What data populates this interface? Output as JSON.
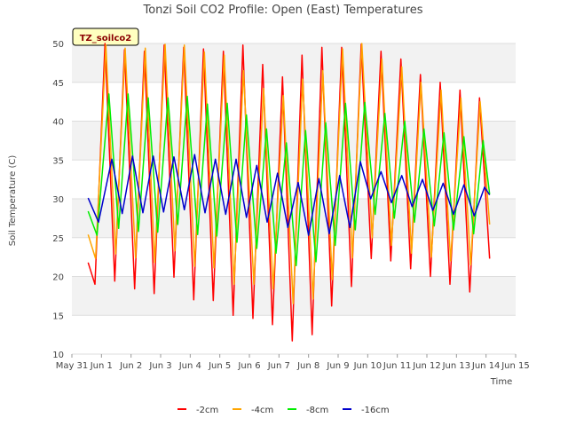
{
  "chart_data": {
    "type": "line",
    "title": "Tonzi Soil CO2 Profile: Open (East) Temperatures",
    "xlabel": "Time",
    "ylabel": "Soil Temperature (C)",
    "ylim": [
      10,
      50
    ],
    "yticks": [
      10,
      15,
      20,
      25,
      30,
      35,
      40,
      45,
      50
    ],
    "xlim": [
      0,
      15
    ],
    "xticks": [
      {
        "x": 0,
        "label": "May 31"
      },
      {
        "x": 1,
        "label": "Jun 1"
      },
      {
        "x": 2,
        "label": "Jun 2"
      },
      {
        "x": 3,
        "label": "Jun 3"
      },
      {
        "x": 4,
        "label": "Jun 4"
      },
      {
        "x": 5,
        "label": "Jun 5"
      },
      {
        "x": 6,
        "label": "Jun 6"
      },
      {
        "x": 7,
        "label": "Jun 7"
      },
      {
        "x": 8,
        "label": "Jun 8"
      },
      {
        "x": 9,
        "label": "Jun 9"
      },
      {
        "x": 10,
        "label": "Jun 10"
      },
      {
        "x": 11,
        "label": "Jun 11"
      },
      {
        "x": 12,
        "label": "Jun 12"
      },
      {
        "x": 13,
        "label": "Jun 13"
      },
      {
        "x": 14,
        "label": "Jun 14"
      },
      {
        "x": 15,
        "label": "Jun 15"
      }
    ],
    "grid": true,
    "background_bands": "alternating light gray",
    "legend": {
      "placement": "bottom-center"
    },
    "badge": "TZ_soilco2",
    "series": [
      {
        "name": "-2cm",
        "color": "#ff0000",
        "x": [
          0.55,
          0.78,
          1.12,
          1.45,
          1.78,
          2.12,
          2.45,
          2.78,
          3.12,
          3.45,
          3.78,
          4.12,
          4.45,
          4.78,
          5.12,
          5.45,
          5.78,
          6.12,
          6.45,
          6.78,
          7.12,
          7.45,
          7.78,
          8.12,
          8.45,
          8.78,
          9.12,
          9.45,
          9.78,
          10.12,
          10.45,
          10.78,
          11.12,
          11.45,
          11.78,
          12.12,
          12.45,
          12.78,
          13.12,
          13.45,
          13.78,
          14.12
        ],
        "y": [
          21.8,
          19.0,
          50.0,
          19.4,
          49.2,
          18.4,
          49.0,
          17.8,
          49.8,
          19.9,
          49.5,
          17.0,
          49.3,
          16.9,
          49.0,
          15.0,
          49.8,
          14.6,
          47.3,
          13.8,
          45.7,
          11.7,
          48.5,
          12.5,
          49.5,
          16.2,
          49.5,
          18.7,
          49.9,
          22.3,
          49.0,
          22.0,
          48.0,
          21.0,
          46.0,
          20.0,
          45.0,
          19.0,
          44.0,
          18.0,
          43.0,
          22.3
        ]
      },
      {
        "name": "-4cm",
        "color": "#ffa500",
        "x": [
          0.55,
          0.8,
          1.15,
          1.48,
          1.8,
          2.15,
          2.48,
          2.8,
          3.15,
          3.48,
          3.8,
          4.15,
          4.48,
          4.8,
          5.15,
          5.48,
          5.8,
          6.15,
          6.48,
          6.8,
          7.15,
          7.48,
          7.8,
          8.15,
          8.48,
          8.8,
          9.15,
          9.48,
          9.8,
          10.15,
          10.48,
          10.8,
          11.15,
          11.48,
          11.8,
          12.15,
          12.48,
          12.8,
          13.15,
          13.48,
          13.8,
          14.12
        ],
        "y": [
          25.4,
          22.3,
          49.8,
          22.9,
          49.4,
          22.4,
          49.4,
          21.8,
          49.9,
          23.3,
          49.8,
          21.3,
          48.9,
          21.1,
          48.5,
          19.0,
          46.5,
          19.0,
          44.2,
          18.4,
          43.3,
          16.5,
          45.4,
          17.1,
          46.5,
          19.6,
          49.3,
          22.4,
          50.0,
          25.0,
          48.0,
          24.0,
          47.0,
          23.0,
          45.0,
          22.5,
          44.0,
          22.0,
          43.0,
          21.5,
          42.5,
          26.7
        ]
      },
      {
        "name": "-8cm",
        "color": "#00ee00",
        "x": [
          0.55,
          0.85,
          1.25,
          1.58,
          1.9,
          2.25,
          2.58,
          2.9,
          3.25,
          3.58,
          3.9,
          4.25,
          4.58,
          4.9,
          5.25,
          5.58,
          5.9,
          6.25,
          6.58,
          6.9,
          7.25,
          7.58,
          7.9,
          8.25,
          8.58,
          8.9,
          9.25,
          9.58,
          9.9,
          10.25,
          10.58,
          10.9,
          11.25,
          11.58,
          11.9,
          12.25,
          12.58,
          12.9,
          13.25,
          13.58,
          13.9,
          14.12
        ],
        "y": [
          28.4,
          25.3,
          43.5,
          26.2,
          43.5,
          25.8,
          43.0,
          25.7,
          43.0,
          26.7,
          43.2,
          25.4,
          42.2,
          25.2,
          42.3,
          24.4,
          40.8,
          23.6,
          39.0,
          23.0,
          37.2,
          21.4,
          38.8,
          21.9,
          39.8,
          24.0,
          42.3,
          26.0,
          42.4,
          28.0,
          41.0,
          27.5,
          40.0,
          27.0,
          39.0,
          26.5,
          38.5,
          26.0,
          38.0,
          25.5,
          37.5,
          30.6
        ]
      },
      {
        "name": "-16cm",
        "color": "#0000cc",
        "x": [
          0.55,
          0.9,
          1.35,
          1.7,
          2.05,
          2.4,
          2.75,
          3.1,
          3.45,
          3.8,
          4.15,
          4.5,
          4.85,
          5.2,
          5.55,
          5.9,
          6.25,
          6.6,
          6.95,
          7.3,
          7.65,
          8.0,
          8.35,
          8.7,
          9.05,
          9.4,
          9.75,
          10.1,
          10.45,
          10.8,
          11.15,
          11.5,
          11.85,
          12.2,
          12.55,
          12.9,
          13.25,
          13.6,
          13.95,
          14.12
        ],
        "y": [
          30.1,
          27.0,
          35.1,
          28.1,
          35.5,
          28.2,
          35.5,
          28.3,
          35.4,
          28.6,
          35.7,
          28.2,
          35.1,
          28.0,
          35.1,
          27.6,
          34.3,
          27.0,
          33.3,
          26.3,
          32.1,
          25.3,
          32.6,
          25.5,
          33.0,
          26.3,
          34.8,
          30.0,
          33.5,
          29.5,
          33.0,
          29.0,
          32.5,
          28.5,
          32.0,
          28.0,
          31.8,
          27.8,
          31.5,
          30.5
        ]
      }
    ]
  }
}
